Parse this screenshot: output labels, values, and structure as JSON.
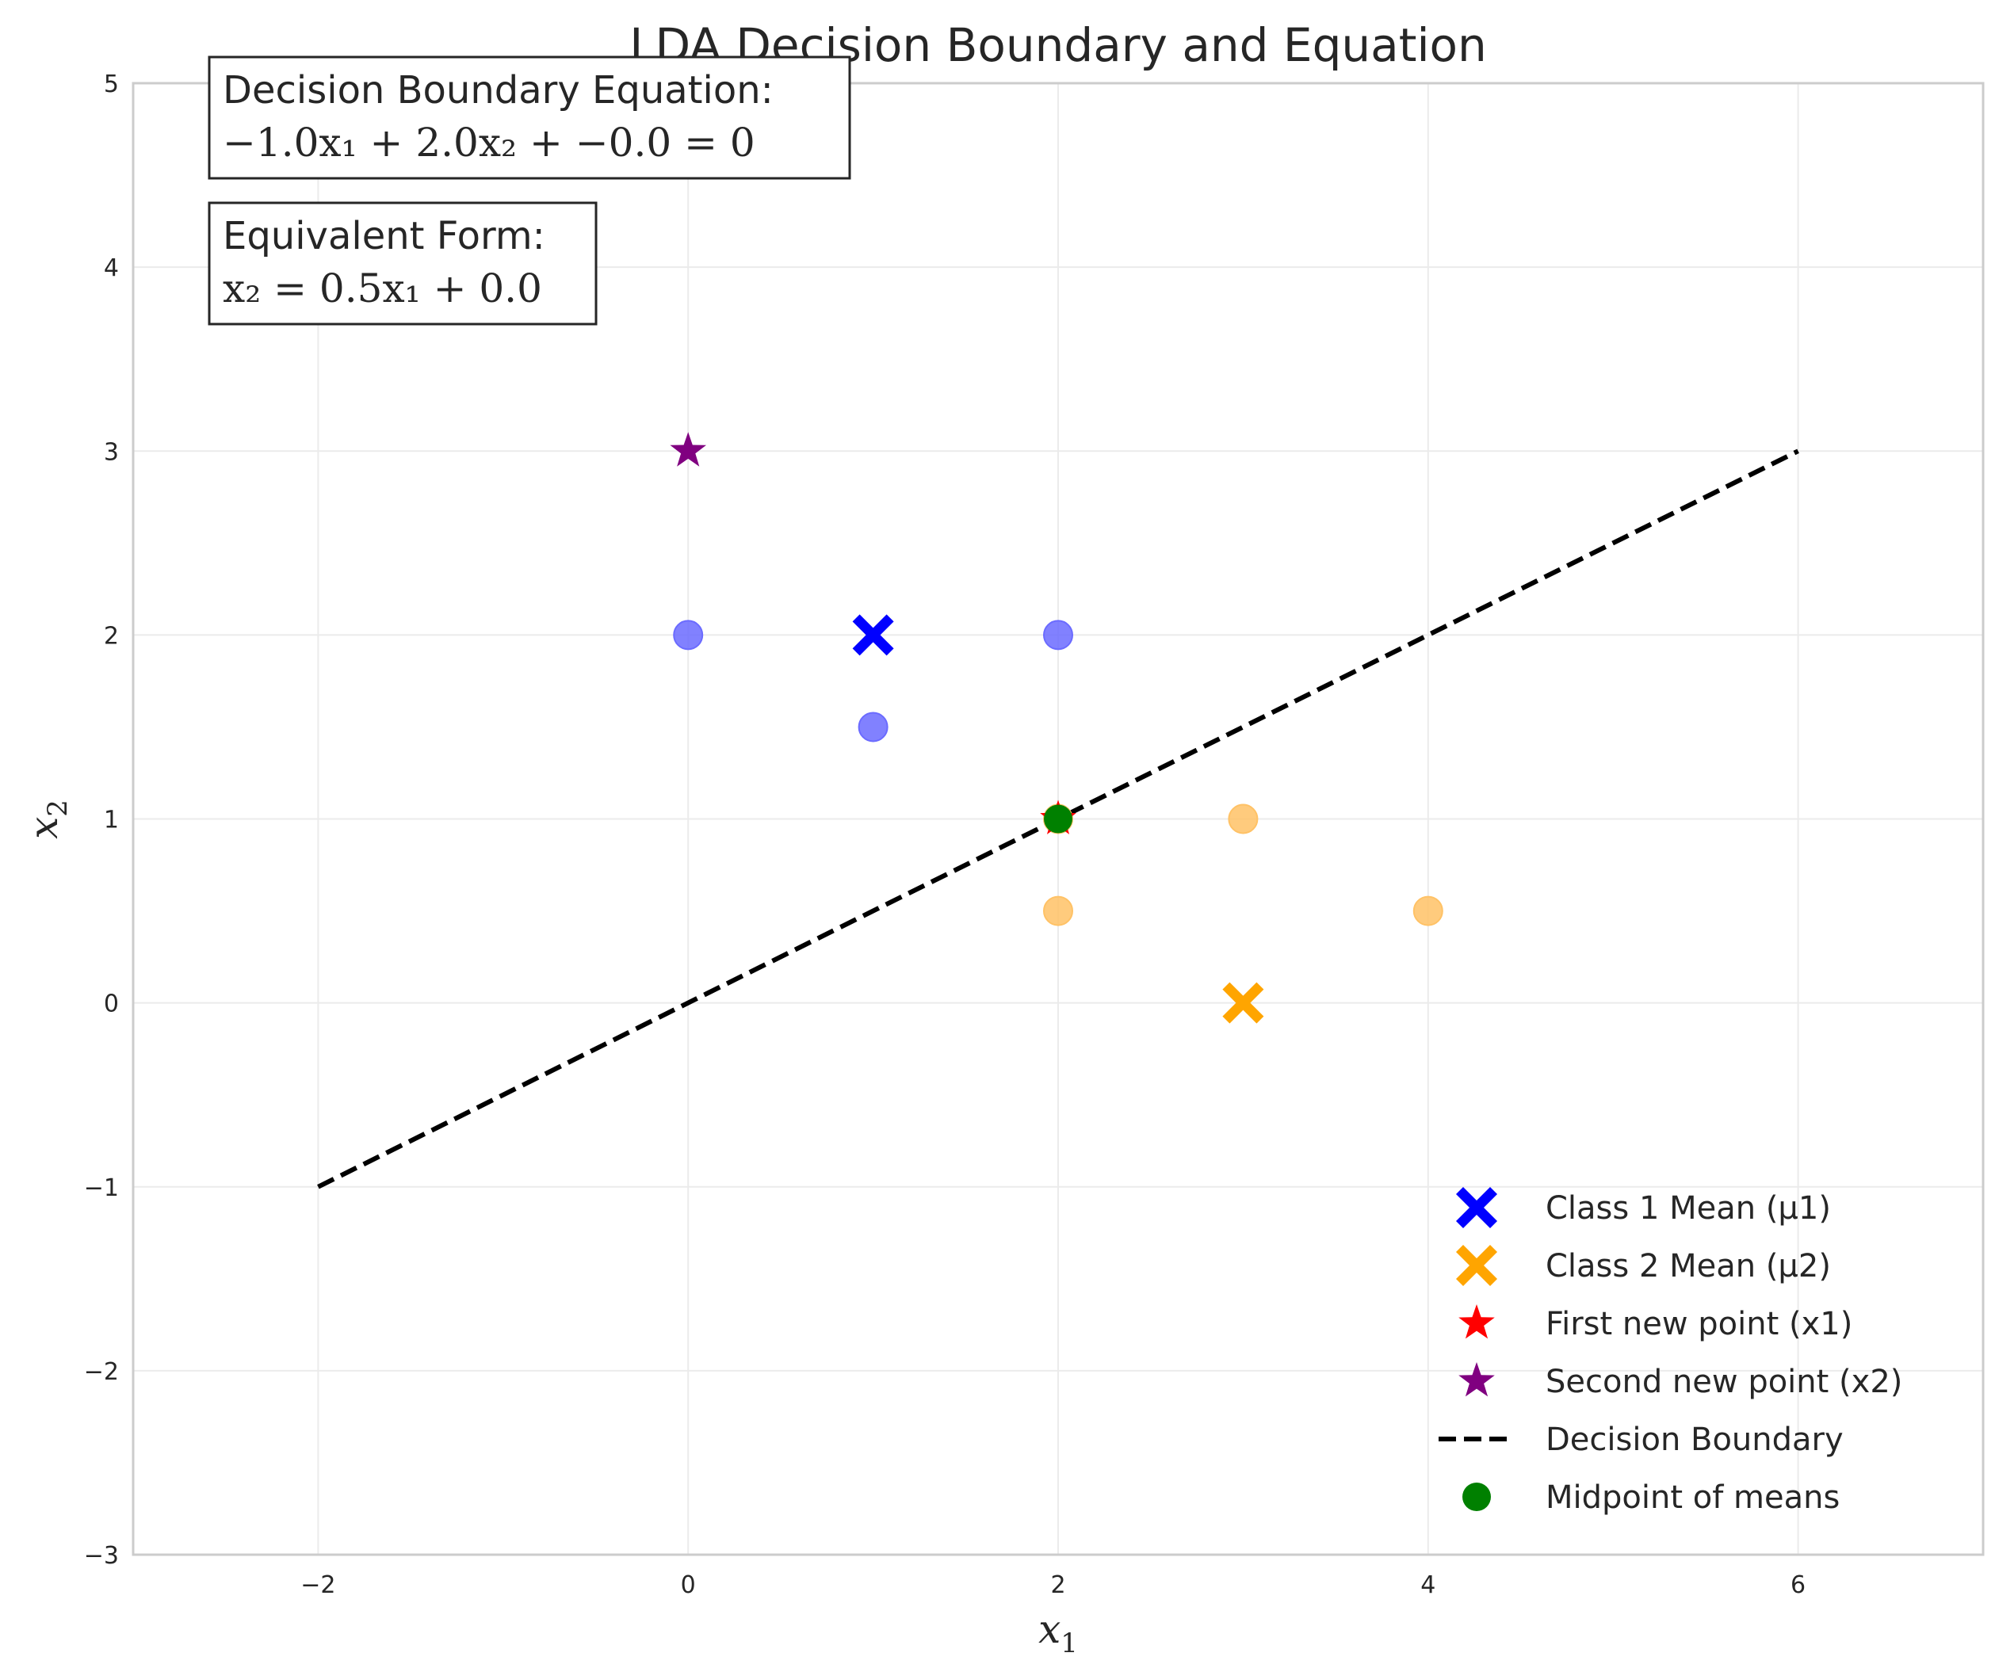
{
  "chart_data": {
    "type": "scatter",
    "title": "LDA Decision Boundary and Equation",
    "xlabel": "x1",
    "ylabel": "x2",
    "xlim": [
      -3,
      7
    ],
    "ylim": [
      -3,
      5
    ],
    "xticks": [
      -2,
      0,
      2,
      4,
      6
    ],
    "yticks": [
      -3,
      -2,
      -1,
      0,
      1,
      2,
      3,
      4,
      5
    ],
    "grid": true,
    "legend_position": "lower-right",
    "annotations": [
      {
        "line1": "Decision Boundary Equation:",
        "line2": "−1.0x₁ + 2.0x₂ + −0.0 = 0"
      },
      {
        "line1": "Equivalent Form:",
        "line2": "x₂ = 0.5x₁ + 0.0"
      }
    ],
    "class_points": [
      {
        "color": "#6b6bff",
        "points": [
          [
            0,
            2
          ],
          [
            1,
            1.5
          ],
          [
            2,
            2
          ]
        ]
      },
      {
        "color": "#ffc266",
        "points": [
          [
            2,
            0.5
          ],
          [
            3,
            1
          ],
          [
            4,
            0.5
          ],
          [
            2,
            1
          ]
        ]
      }
    ],
    "series": [
      {
        "name": "Class 1 Mean (μ1)",
        "marker": "x",
        "color": "#0000ff",
        "points": [
          [
            1,
            2
          ]
        ]
      },
      {
        "name": "Class 2 Mean (μ2)",
        "marker": "x",
        "color": "#ffa500",
        "points": [
          [
            3,
            0
          ]
        ]
      },
      {
        "name": "First new point (x1)",
        "marker": "star",
        "color": "#ff0000",
        "points": [
          [
            2,
            1
          ]
        ]
      },
      {
        "name": "Second new point (x2)",
        "marker": "star",
        "color": "#800080",
        "points": [
          [
            0,
            3
          ]
        ]
      },
      {
        "name": "Decision Boundary",
        "marker": "dashed-line",
        "color": "#000000",
        "points": [
          [
            -2,
            -1
          ],
          [
            6,
            3
          ]
        ]
      },
      {
        "name": "Midpoint of means",
        "marker": "circle",
        "color": "#008000",
        "points": [
          [
            2,
            1
          ]
        ]
      }
    ]
  }
}
